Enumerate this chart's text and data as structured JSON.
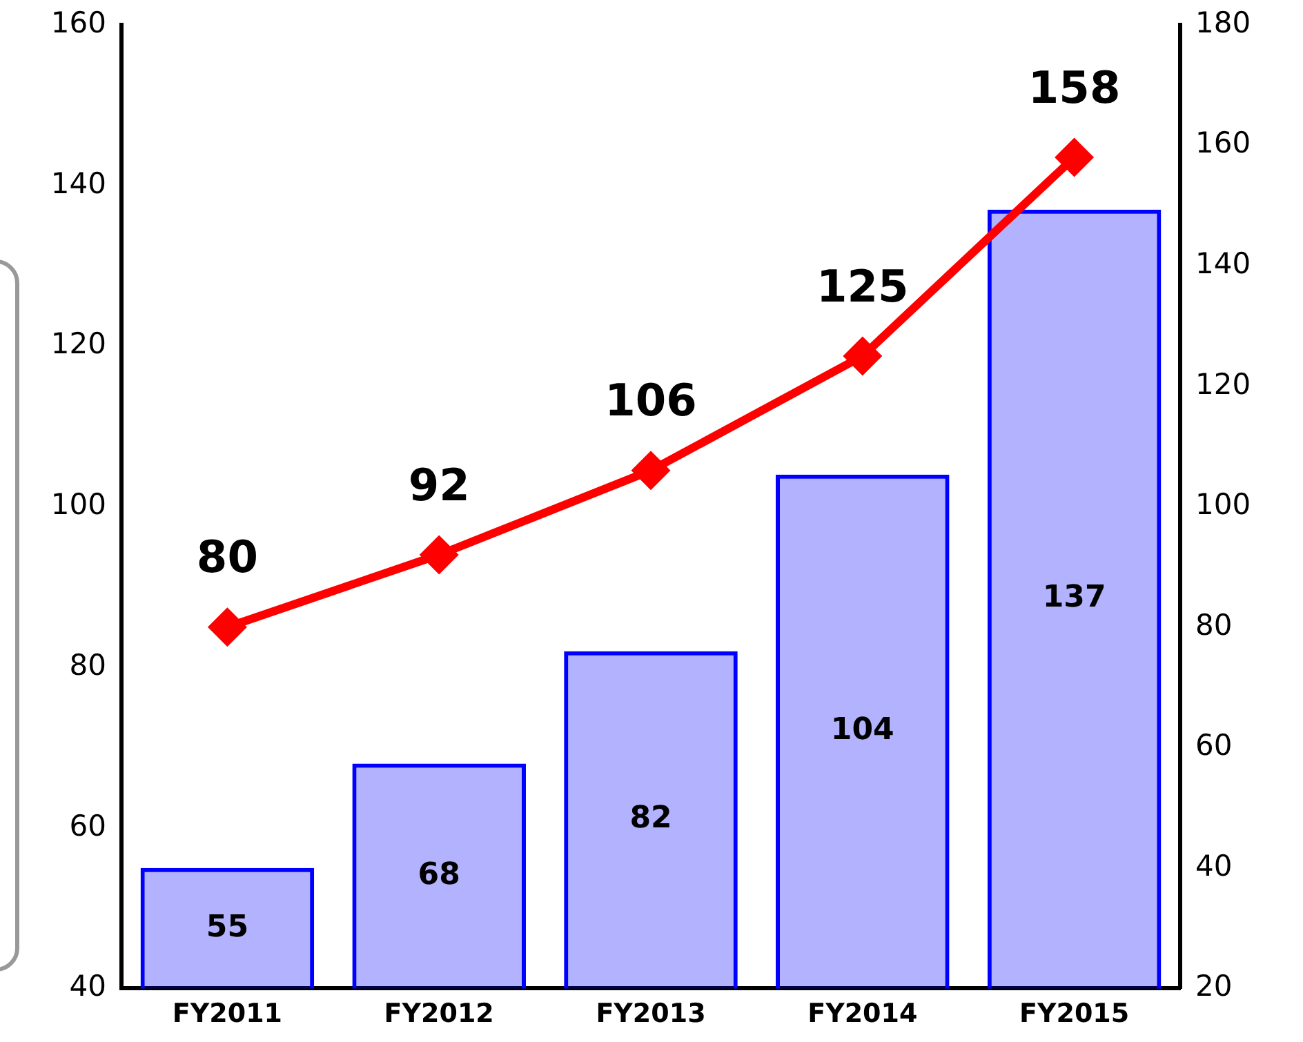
{
  "chart_data": {
    "type": "bar",
    "categories": [
      "FY2011",
      "FY2012",
      "FY2013",
      "FY2014",
      "FY2015"
    ],
    "series": [
      {
        "color": "#0000ff",
        "values": [
          55,
          68,
          82,
          104,
          137
        ]
      },
      {
        "type": "line",
        "axis": "y2",
        "color": "#ff0000",
        "values": [
          80,
          92,
          106,
          125,
          158
        ]
      }
    ],
    "ylim": [
      40,
      160
    ],
    "yticks": [
      40,
      60,
      80,
      100,
      120,
      140,
      160
    ],
    "y2lim": [
      20,
      180
    ],
    "y2ticks": [
      20,
      40,
      60,
      80,
      100,
      120,
      140,
      160,
      180
    ],
    "data_labels": true,
    "grid": false,
    "legend": false,
    "marker": "diamond",
    "line_style": "solid"
  }
}
